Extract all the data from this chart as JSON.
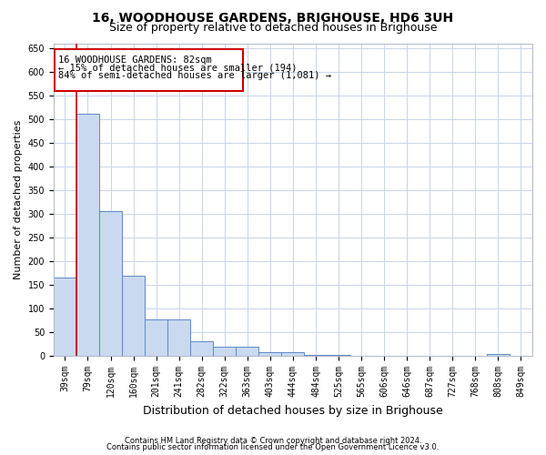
{
  "title": "16, WOODHOUSE GARDENS, BRIGHOUSE, HD6 3UH",
  "subtitle": "Size of property relative to detached houses in Brighouse",
  "xlabel": "Distribution of detached houses by size in Brighouse",
  "ylabel": "Number of detached properties",
  "categories": [
    "39sqm",
    "79sqm",
    "120sqm",
    "160sqm",
    "201sqm",
    "241sqm",
    "282sqm",
    "322sqm",
    "363sqm",
    "403sqm",
    "444sqm",
    "484sqm",
    "525sqm",
    "565sqm",
    "606sqm",
    "646sqm",
    "687sqm",
    "727sqm",
    "768sqm",
    "808sqm",
    "849sqm"
  ],
  "values": [
    165,
    512,
    305,
    170,
    77,
    77,
    32,
    20,
    20,
    8,
    8,
    2,
    2,
    0,
    0,
    0,
    0,
    0,
    0,
    5,
    0
  ],
  "bar_color": "#c9d9ef",
  "bar_edge_color": "#5b88c8",
  "ylim": [
    0,
    660
  ],
  "yticks": [
    0,
    50,
    100,
    150,
    200,
    250,
    300,
    350,
    400,
    450,
    500,
    550,
    600,
    650
  ],
  "annotation_text_line1": "16 WOODHOUSE GARDENS: 82sqm",
  "annotation_text_line2": "← 15% of detached houses are smaller (194)",
  "annotation_text_line3": "84% of semi-detached houses are larger (1,081) →",
  "annotation_box_color": "#cc0000",
  "footer1": "Contains HM Land Registry data © Crown copyright and database right 2024.",
  "footer2": "Contains public sector information licensed under the Open Government Licence v3.0.",
  "bg_color": "#ffffff",
  "grid_color": "#c8d4e8",
  "title_fontsize": 10,
  "subtitle_fontsize": 9,
  "ylabel_fontsize": 8,
  "xlabel_fontsize": 9,
  "tick_fontsize": 7,
  "annot_fontsize": 7.5
}
